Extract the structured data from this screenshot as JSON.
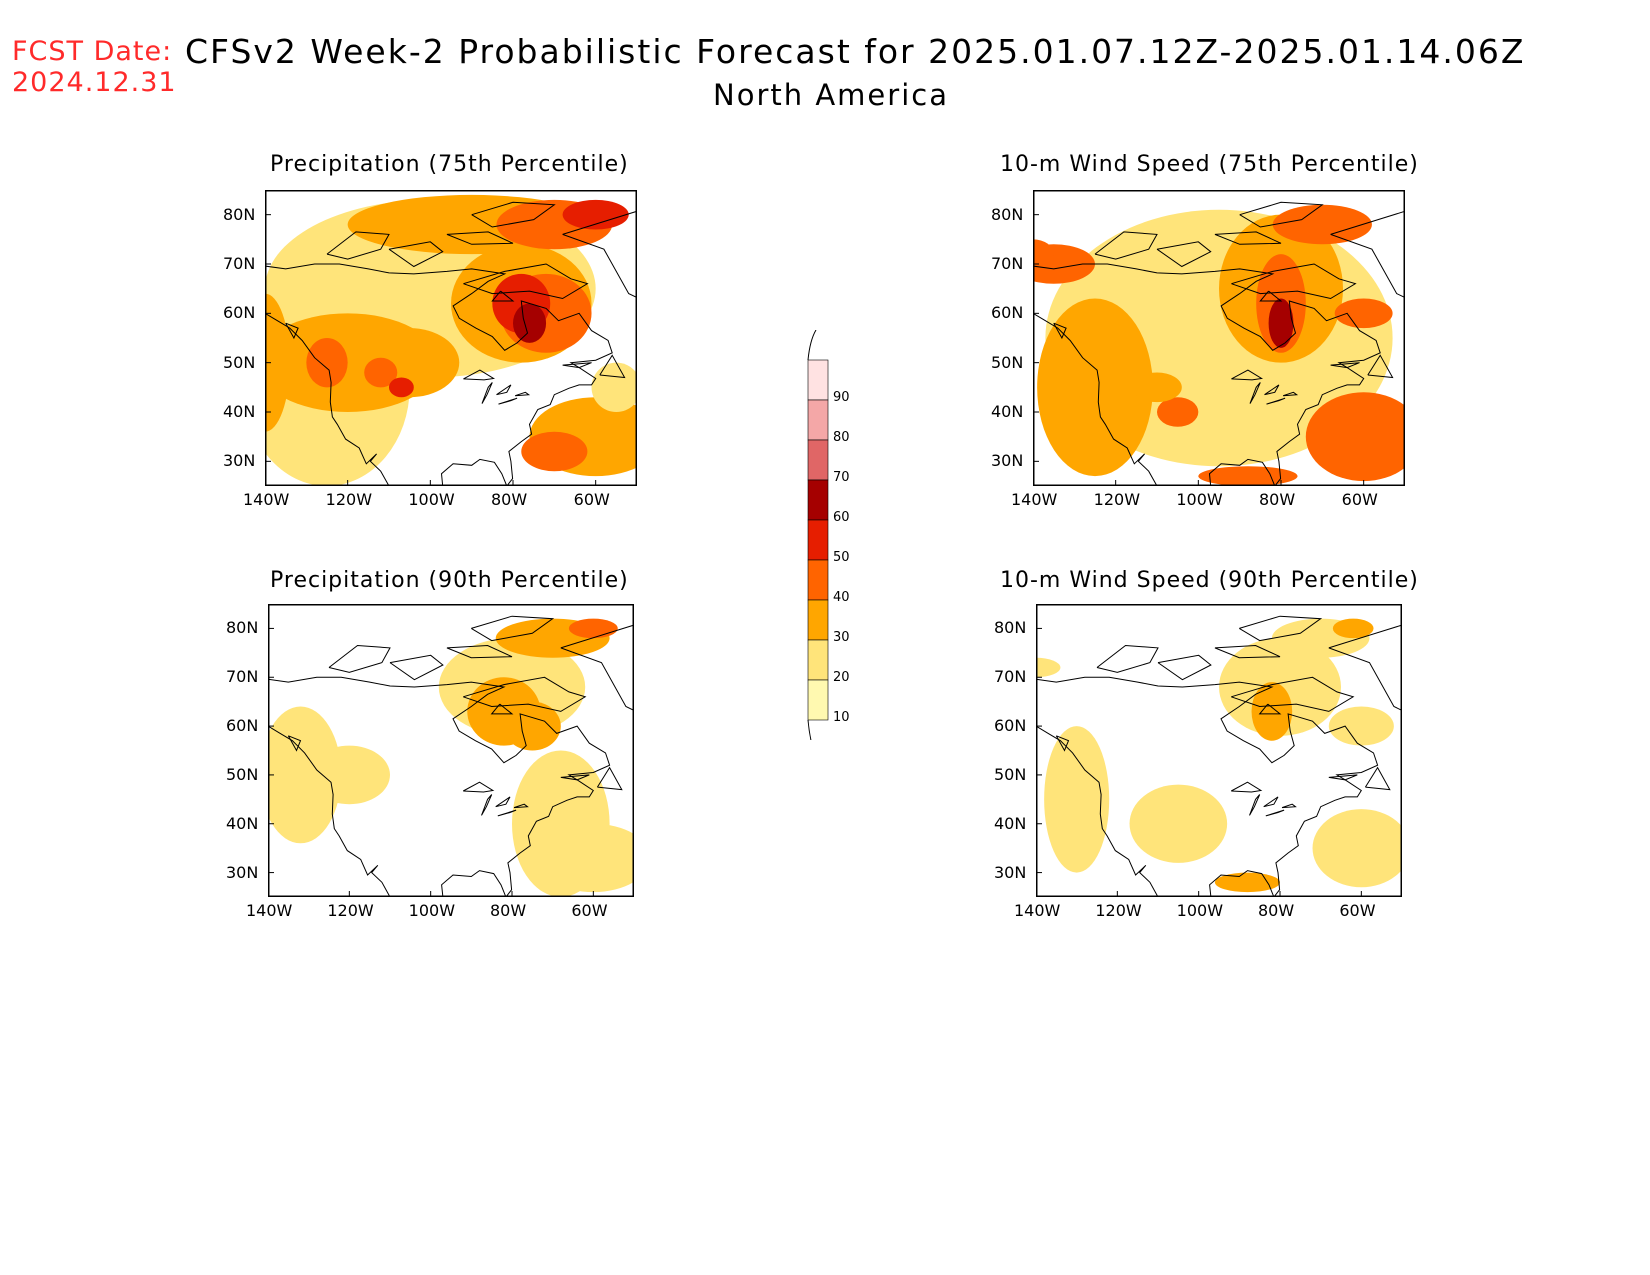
{
  "fcst": {
    "line1": "FCST Date:",
    "line2": "2024.12.31"
  },
  "title": "CFSv2 Week-2 Probabilistic Forecast for 2025.01.07.12Z-2025.01.14.06Z",
  "subtitle": "North America",
  "panels": [
    {
      "title": "Precipitation (75th Percentile)",
      "scheme": "p75"
    },
    {
      "title": "10-m Wind Speed (75th Percentile)",
      "scheme": "w75"
    },
    {
      "title": "Precipitation (90th Percentile)",
      "scheme": "p90"
    },
    {
      "title": "10-m Wind Speed (90th Percentile)",
      "scheme": "w90"
    }
  ],
  "lat_ticks": [
    "80N",
    "70N",
    "60N",
    "50N",
    "40N",
    "30N"
  ],
  "lon_ticks": [
    "140W",
    "120W",
    "100W",
    "80W",
    "60W"
  ],
  "colorbar": {
    "levels": [
      "10",
      "20",
      "30",
      "40",
      "50",
      "60",
      "70",
      "80",
      "90"
    ],
    "colors": [
      "#fff9b0",
      "#ffe47a",
      "#ffa600",
      "#ff6400",
      "#e61e00",
      "#a50000",
      "#e06666",
      "#f4a7a7",
      "#ffe2e2"
    ]
  }
}
